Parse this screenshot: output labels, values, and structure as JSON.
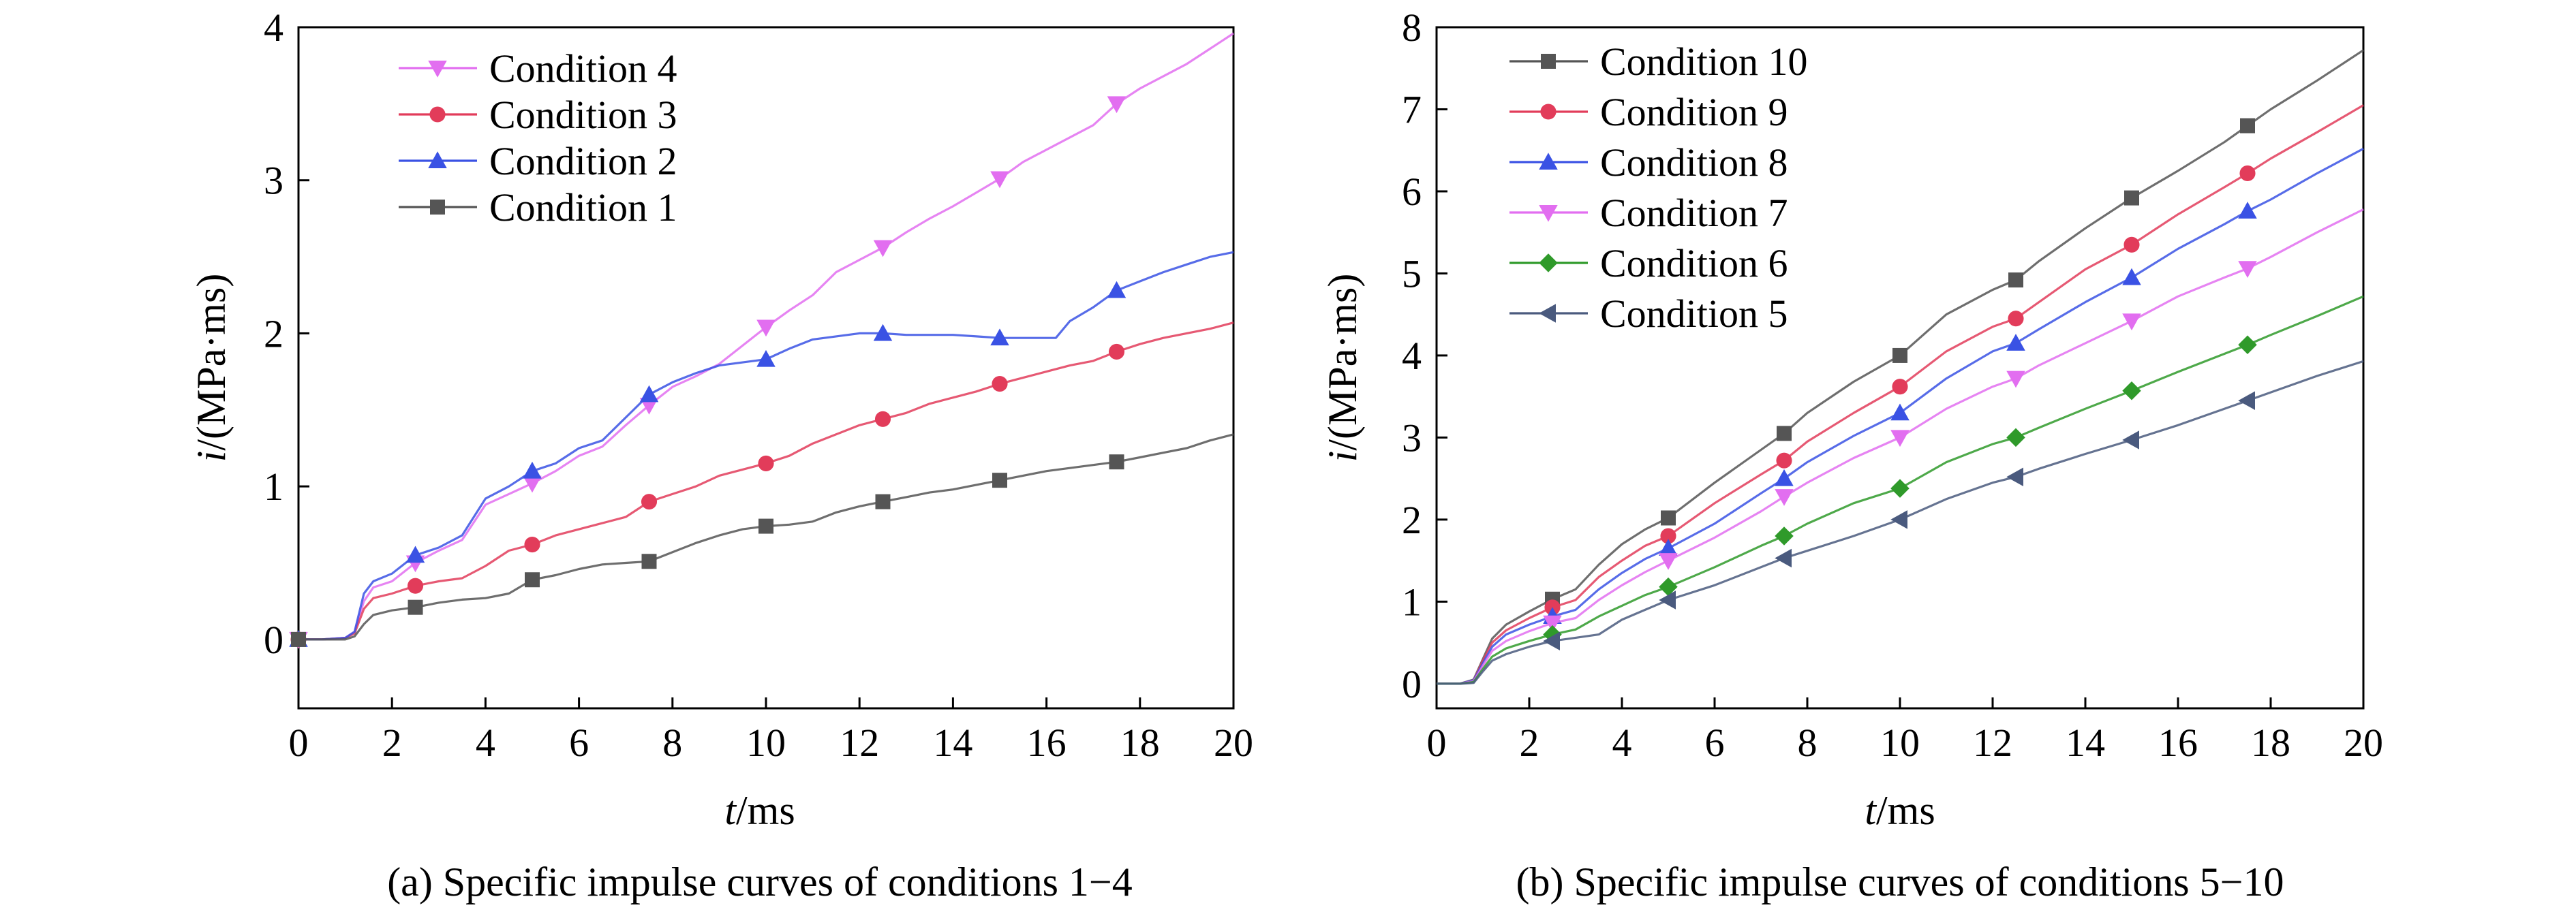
{
  "chart_data": [
    {
      "type": "line",
      "caption": "(a) Specific impulse curves of conditions 1−4",
      "xlabel_var": "t",
      "xlabel_unit": "/ms",
      "ylabel_var": "i",
      "ylabel_unit": "/(MPa·ms)",
      "xlim": [
        0,
        20
      ],
      "ylim": [
        -0.45,
        4
      ],
      "xticks": [
        0,
        2,
        4,
        6,
        8,
        10,
        12,
        14,
        16,
        18,
        20
      ],
      "yticks": [
        0,
        1,
        2,
        3,
        4
      ],
      "grid": false,
      "legend_position": "top-left",
      "series": [
        {
          "name": "Condition 4",
          "color": "#e26ef0",
          "marker": "triangle-down",
          "x": [
            0,
            0.5,
            1.0,
            1.2,
            1.4,
            1.6,
            2.0,
            2.5,
            3.0,
            3.5,
            4.0,
            4.5,
            5.0,
            5.5,
            6.0,
            6.5,
            7.0,
            7.5,
            8.0,
            8.5,
            9.0,
            9.5,
            10.0,
            10.5,
            11.0,
            11.5,
            12.0,
            12.5,
            13.0,
            13.5,
            14.0,
            14.5,
            15.0,
            15.5,
            16.0,
            16.5,
            17.0,
            17.5,
            18.0,
            18.5,
            19.0,
            19.5,
            20.0
          ],
          "y": [
            0,
            0,
            0.01,
            0.05,
            0.25,
            0.34,
            0.38,
            0.5,
            0.58,
            0.65,
            0.88,
            0.95,
            1.02,
            1.1,
            1.2,
            1.26,
            1.4,
            1.53,
            1.65,
            1.72,
            1.8,
            1.92,
            2.04,
            2.15,
            2.25,
            2.4,
            2.48,
            2.56,
            2.66,
            2.75,
            2.83,
            2.92,
            3.01,
            3.12,
            3.2,
            3.28,
            3.36,
            3.5,
            3.6,
            3.68,
            3.76,
            3.86,
            3.96
          ],
          "markers_x": [
            0,
            2.5,
            5,
            7.5,
            10,
            12.5,
            15,
            17.5
          ]
        },
        {
          "name": "Condition 3",
          "color": "#e23c5a",
          "marker": "circle",
          "x": [
            0,
            0.5,
            1.0,
            1.2,
            1.4,
            1.6,
            2.0,
            2.5,
            3.0,
            3.5,
            4.0,
            4.5,
            5.0,
            5.5,
            6.0,
            6.5,
            7.0,
            7.5,
            8.0,
            8.5,
            9.0,
            9.5,
            10.0,
            10.5,
            11.0,
            11.5,
            12.0,
            12.5,
            13.0,
            13.5,
            14.0,
            14.5,
            15.0,
            15.5,
            16.0,
            16.5,
            17.0,
            17.5,
            18.0,
            18.5,
            19.0,
            19.5,
            20.0
          ],
          "y": [
            0,
            0,
            0.01,
            0.04,
            0.2,
            0.27,
            0.3,
            0.35,
            0.38,
            0.4,
            0.48,
            0.58,
            0.62,
            0.68,
            0.72,
            0.76,
            0.8,
            0.9,
            0.95,
            1.0,
            1.07,
            1.11,
            1.15,
            1.2,
            1.28,
            1.34,
            1.4,
            1.44,
            1.48,
            1.54,
            1.58,
            1.62,
            1.67,
            1.71,
            1.75,
            1.79,
            1.82,
            1.88,
            1.93,
            1.97,
            2.0,
            2.03,
            2.07
          ],
          "markers_x": [
            0,
            2.5,
            5,
            7.5,
            10,
            12.5,
            15,
            17.5
          ]
        },
        {
          "name": "Condition 2",
          "color": "#3a52e4",
          "marker": "triangle-up",
          "x": [
            0,
            0.5,
            1.0,
            1.2,
            1.4,
            1.6,
            2.0,
            2.5,
            3.0,
            3.5,
            4.0,
            4.5,
            5.0,
            5.5,
            6.0,
            6.5,
            7.0,
            7.5,
            8.0,
            8.5,
            9.0,
            9.5,
            10.0,
            10.5,
            11.0,
            11.5,
            12.0,
            12.5,
            13.0,
            13.5,
            14.0,
            14.5,
            15.0,
            15.5,
            16.0,
            16.2,
            16.5,
            17.0,
            17.5,
            18.0,
            18.5,
            19.0,
            19.5,
            20.0
          ],
          "y": [
            0,
            0,
            0.01,
            0.05,
            0.3,
            0.38,
            0.43,
            0.55,
            0.6,
            0.68,
            0.92,
            1.0,
            1.1,
            1.15,
            1.25,
            1.3,
            1.45,
            1.6,
            1.68,
            1.74,
            1.79,
            1.81,
            1.83,
            1.9,
            1.96,
            1.98,
            2.0,
            2.0,
            1.99,
            1.99,
            1.99,
            1.98,
            1.97,
            1.97,
            1.97,
            1.97,
            2.08,
            2.17,
            2.28,
            2.34,
            2.4,
            2.45,
            2.5,
            2.53
          ],
          "markers_x": [
            0,
            2.5,
            5,
            7.5,
            10,
            12.5,
            15,
            17.5
          ]
        },
        {
          "name": "Condition 1",
          "color": "#555555",
          "marker": "square",
          "x": [
            0,
            0.5,
            1.0,
            1.2,
            1.4,
            1.6,
            2.0,
            2.5,
            3.0,
            3.5,
            4.0,
            4.5,
            5.0,
            5.5,
            6.0,
            6.5,
            7.0,
            7.5,
            8.0,
            8.5,
            9.0,
            9.5,
            10.0,
            10.5,
            11.0,
            11.5,
            12.0,
            12.5,
            13.0,
            13.5,
            14.0,
            14.5,
            15.0,
            15.5,
            16.0,
            16.5,
            17.0,
            17.5,
            18.0,
            18.5,
            19.0,
            19.5,
            20.0
          ],
          "y": [
            0,
            0,
            0.0,
            0.02,
            0.1,
            0.16,
            0.19,
            0.21,
            0.24,
            0.26,
            0.27,
            0.3,
            0.39,
            0.42,
            0.46,
            0.49,
            0.5,
            0.51,
            0.57,
            0.63,
            0.68,
            0.72,
            0.74,
            0.75,
            0.77,
            0.83,
            0.87,
            0.9,
            0.93,
            0.96,
            0.98,
            1.01,
            1.04,
            1.07,
            1.1,
            1.12,
            1.14,
            1.16,
            1.19,
            1.22,
            1.25,
            1.3,
            1.34
          ],
          "markers_x": [
            0,
            2.5,
            5,
            7.5,
            10,
            12.5,
            15,
            17.5
          ]
        }
      ]
    },
    {
      "type": "line",
      "caption": "(b) Specific impulse curves of conditions 5−10",
      "xlabel_var": "t",
      "xlabel_unit": "/ms",
      "ylabel_var": "i",
      "ylabel_unit": "/(MPa·ms)",
      "xlim": [
        0,
        20
      ],
      "ylim": [
        -0.3,
        8
      ],
      "xticks": [
        0,
        2,
        4,
        6,
        8,
        10,
        12,
        14,
        16,
        18,
        20
      ],
      "yticks": [
        0,
        1,
        2,
        3,
        4,
        5,
        6,
        7,
        8
      ],
      "grid": false,
      "legend_position": "top-left",
      "series": [
        {
          "name": "Condition 10",
          "color": "#555555",
          "marker": "square",
          "x": [
            0,
            0.5,
            0.8,
            1.0,
            1.2,
            1.5,
            2.0,
            2.5,
            3.0,
            3.5,
            4.0,
            4.5,
            5.0,
            6.0,
            7.0,
            7.5,
            8.0,
            9.0,
            10.0,
            11.0,
            12.0,
            12.5,
            13.0,
            14.0,
            15.0,
            16.0,
            17.0,
            17.5,
            18.0,
            19.0,
            20.0
          ],
          "y": [
            0,
            0,
            0.05,
            0.3,
            0.55,
            0.72,
            0.88,
            1.03,
            1.15,
            1.45,
            1.7,
            1.88,
            2.02,
            2.45,
            2.85,
            3.05,
            3.3,
            3.68,
            4.0,
            4.5,
            4.8,
            4.92,
            5.15,
            5.55,
            5.92,
            6.25,
            6.6,
            6.8,
            7.0,
            7.35,
            7.72
          ],
          "markers_x": [
            2.5,
            5,
            7.5,
            10,
            12.5,
            15,
            17.5
          ]
        },
        {
          "name": "Condition 9",
          "color": "#e23c5a",
          "marker": "circle",
          "x": [
            0,
            0.5,
            0.8,
            1.0,
            1.2,
            1.5,
            2.0,
            2.5,
            3.0,
            3.5,
            4.0,
            4.5,
            5.0,
            6.0,
            7.0,
            7.5,
            8.0,
            9.0,
            10.0,
            11.0,
            12.0,
            12.5,
            13.0,
            14.0,
            15.0,
            16.0,
            17.0,
            17.5,
            18.0,
            19.0,
            20.0
          ],
          "y": [
            0,
            0,
            0.04,
            0.28,
            0.5,
            0.65,
            0.8,
            0.93,
            1.02,
            1.3,
            1.5,
            1.68,
            1.8,
            2.2,
            2.55,
            2.72,
            2.95,
            3.3,
            3.62,
            4.05,
            4.35,
            4.45,
            4.65,
            5.05,
            5.35,
            5.72,
            6.05,
            6.22,
            6.4,
            6.72,
            7.05
          ],
          "markers_x": [
            2.5,
            5,
            7.5,
            10,
            12.5,
            15,
            17.5
          ]
        },
        {
          "name": "Condition 8",
          "color": "#3a52e4",
          "marker": "triangle-up",
          "x": [
            0,
            0.5,
            0.8,
            1.0,
            1.2,
            1.5,
            2.0,
            2.5,
            3.0,
            3.5,
            4.0,
            4.5,
            5.0,
            6.0,
            7.0,
            7.5,
            8.0,
            9.0,
            10.0,
            11.0,
            12.0,
            12.5,
            13.0,
            14.0,
            15.0,
            16.0,
            17.0,
            17.5,
            18.0,
            19.0,
            20.0
          ],
          "y": [
            0,
            0,
            0.04,
            0.25,
            0.45,
            0.6,
            0.72,
            0.82,
            0.9,
            1.15,
            1.35,
            1.52,
            1.65,
            1.95,
            2.32,
            2.5,
            2.7,
            3.02,
            3.3,
            3.72,
            4.05,
            4.15,
            4.32,
            4.65,
            4.95,
            5.3,
            5.6,
            5.76,
            5.9,
            6.22,
            6.52
          ],
          "markers_x": [
            2.5,
            5,
            7.5,
            10,
            12.5,
            15,
            17.5
          ]
        },
        {
          "name": "Condition 7",
          "color": "#e26ef0",
          "marker": "triangle-down",
          "x": [
            0,
            0.5,
            0.8,
            1.0,
            1.2,
            1.5,
            2.0,
            2.5,
            3.0,
            3.5,
            4.0,
            4.5,
            5.0,
            6.0,
            7.0,
            7.5,
            8.0,
            9.0,
            10.0,
            11.0,
            12.0,
            12.5,
            13.0,
            14.0,
            15.0,
            16.0,
            17.0,
            17.5,
            18.0,
            19.0,
            20.0
          ],
          "y": [
            0,
            0,
            0.03,
            0.22,
            0.4,
            0.52,
            0.64,
            0.74,
            0.8,
            1.02,
            1.2,
            1.36,
            1.5,
            1.78,
            2.1,
            2.28,
            2.45,
            2.75,
            3.0,
            3.35,
            3.62,
            3.72,
            3.88,
            4.15,
            4.42,
            4.72,
            4.95,
            5.06,
            5.2,
            5.5,
            5.78
          ],
          "markers_x": [
            2.5,
            5,
            7.5,
            10,
            12.5,
            15,
            17.5
          ]
        },
        {
          "name": "Condition 6",
          "color": "#2f9a2a",
          "marker": "diamond",
          "x": [
            0,
            0.5,
            0.8,
            1.0,
            1.2,
            1.5,
            2.0,
            2.5,
            3.0,
            3.5,
            4.0,
            4.5,
            5.0,
            6.0,
            7.0,
            7.5,
            8.0,
            9.0,
            10.0,
            11.0,
            12.0,
            12.5,
            13.0,
            14.0,
            15.0,
            16.0,
            17.0,
            17.5,
            18.0,
            19.0,
            20.0
          ],
          "y": [
            0,
            0,
            0.02,
            0.18,
            0.33,
            0.43,
            0.52,
            0.6,
            0.66,
            0.82,
            0.95,
            1.08,
            1.18,
            1.42,
            1.68,
            1.8,
            1.95,
            2.2,
            2.38,
            2.7,
            2.92,
            3.0,
            3.12,
            3.35,
            3.57,
            3.8,
            4.02,
            4.13,
            4.25,
            4.48,
            4.72
          ],
          "markers_x": [
            2.5,
            5,
            7.5,
            10,
            12.5,
            15,
            17.5
          ]
        },
        {
          "name": "Condition 5",
          "color": "#4a5a7e",
          "marker": "triangle-left",
          "x": [
            0,
            0.5,
            0.8,
            1.0,
            1.2,
            1.5,
            2.0,
            2.5,
            3.0,
            3.5,
            4.0,
            4.5,
            5.0,
            6.0,
            7.0,
            7.5,
            8.0,
            9.0,
            10.0,
            11.0,
            12.0,
            12.5,
            13.0,
            14.0,
            15.0,
            16.0,
            17.0,
            17.5,
            18.0,
            19.0,
            20.0
          ],
          "y": [
            0,
            0,
            0.01,
            0.15,
            0.28,
            0.36,
            0.45,
            0.52,
            0.56,
            0.6,
            0.78,
            0.9,
            1.02,
            1.2,
            1.42,
            1.53,
            1.62,
            1.8,
            2.0,
            2.25,
            2.45,
            2.52,
            2.62,
            2.8,
            2.97,
            3.15,
            3.35,
            3.45,
            3.55,
            3.75,
            3.93
          ],
          "markers_x": [
            2.5,
            5,
            7.5,
            10,
            12.5,
            15,
            17.5
          ]
        }
      ]
    }
  ]
}
